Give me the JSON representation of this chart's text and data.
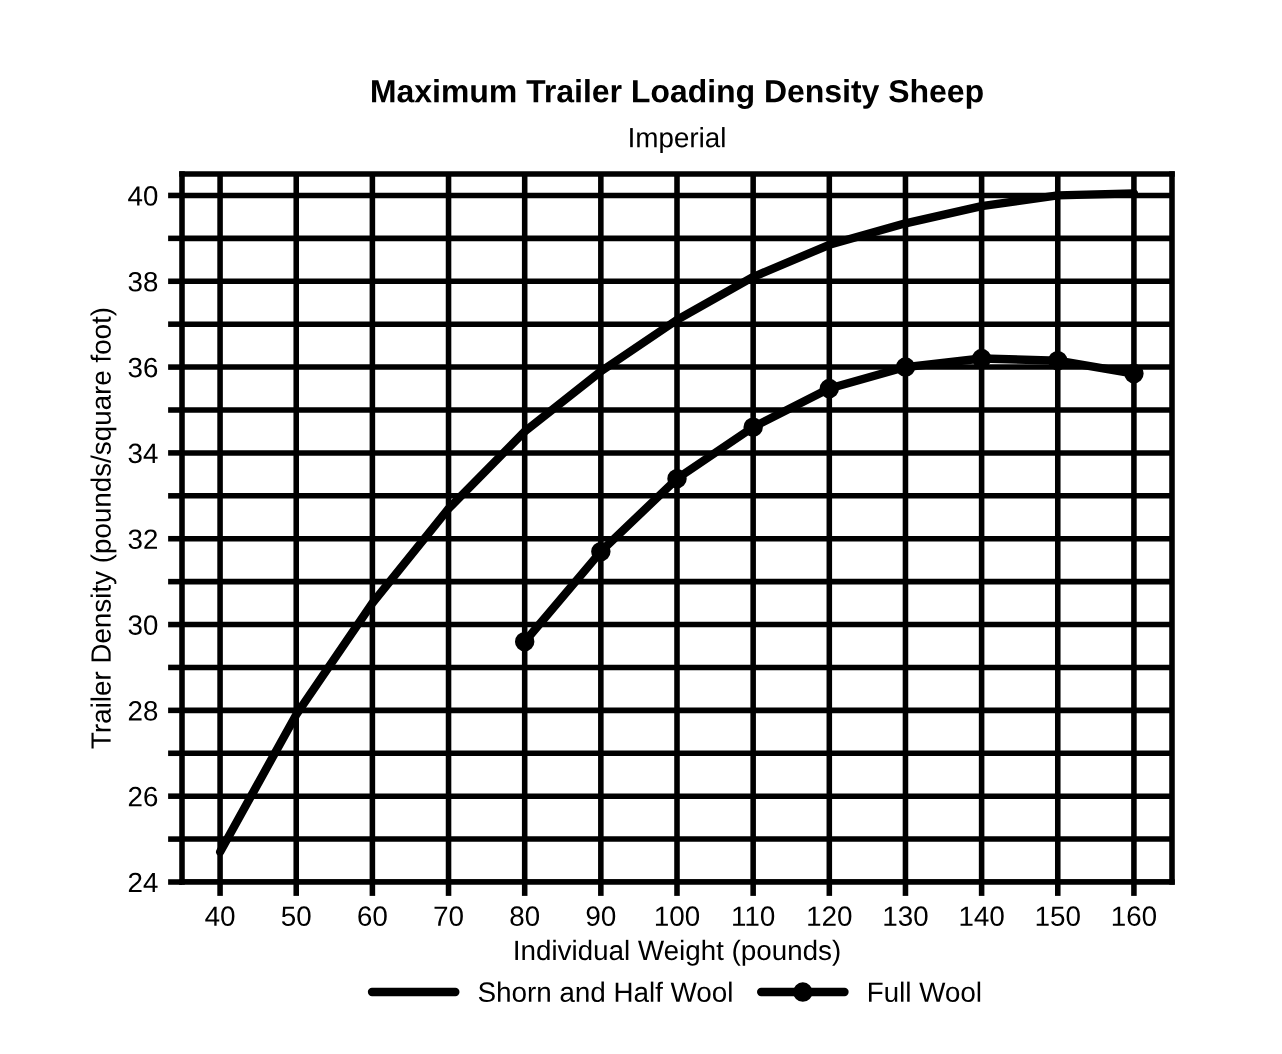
{
  "chart_data": {
    "type": "line",
    "title": "Maximum Trailer Loading Density Sheep",
    "subtitle": "Imperial",
    "xlabel": "Individual Weight (pounds)",
    "ylabel": "Trailer Density (pounds/square foot)",
    "series": [
      {
        "name": "Shorn and Half Wool",
        "color": "#000000",
        "marker": "none",
        "x": [
          40,
          50,
          60,
          70,
          80,
          90,
          100,
          110,
          120,
          130,
          140,
          150,
          160
        ],
        "values": [
          24.7,
          27.9,
          30.5,
          32.7,
          34.5,
          35.9,
          37.1,
          38.1,
          38.85,
          39.35,
          39.75,
          40.0,
          40.05
        ]
      },
      {
        "name": "Full Wool",
        "color": "#000000",
        "marker": "circle",
        "x": [
          80,
          90,
          100,
          110,
          120,
          130,
          140,
          150,
          160
        ],
        "values": [
          29.6,
          31.7,
          33.4,
          34.6,
          35.5,
          36.0,
          36.2,
          36.15,
          35.85
        ]
      }
    ],
    "xlim": [
      35,
      165
    ],
    "xticks": [
      40,
      50,
      60,
      70,
      80,
      90,
      100,
      110,
      120,
      130,
      140,
      150,
      160
    ],
    "ylim": [
      24,
      40.5
    ],
    "yticks": [
      24,
      {
        "value": 25,
        "label": null
      },
      26,
      {
        "value": 27,
        "label": null
      },
      28,
      {
        "value": 29,
        "label": null
      },
      30,
      {
        "value": 31,
        "label": null
      },
      32,
      {
        "value": 33,
        "label": null
      },
      34,
      {
        "value": 35,
        "label": null
      },
      36,
      {
        "value": 37,
        "label": null
      },
      38,
      {
        "value": 39,
        "label": null
      },
      40
    ],
    "grid": true,
    "legend": "bottom",
    "line_style": "solid"
  }
}
